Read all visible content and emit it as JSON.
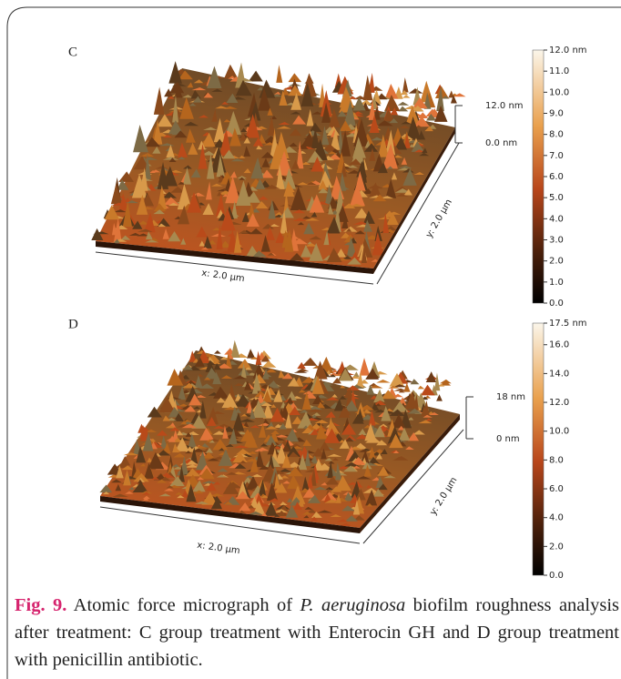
{
  "panels": [
    {
      "label": "C",
      "z_scale": {
        "top": "12.0 nm",
        "bottom": "0.0 nm"
      },
      "x_axis": "x: 2.0 µm",
      "y_axis": "y: 2.0 µm",
      "colorbar": {
        "range": [
          0,
          12
        ],
        "ticks": [
          {
            "value": 0,
            "label": "0.0"
          },
          {
            "value": 1,
            "label": "1.0"
          },
          {
            "value": 2,
            "label": "2.0"
          },
          {
            "value": 3,
            "label": "3.0"
          },
          {
            "value": 4,
            "label": "4.0"
          },
          {
            "value": 5,
            "label": "5.0"
          },
          {
            "value": 6,
            "label": "6.0"
          },
          {
            "value": 7,
            "label": "7.0"
          },
          {
            "value": 8,
            "label": "8.0"
          },
          {
            "value": 9,
            "label": "9.0"
          },
          {
            "value": 10,
            "label": "10.0"
          },
          {
            "value": 11,
            "label": "11.0"
          },
          {
            "value": 12,
            "label": "12.0 nm"
          }
        ]
      }
    },
    {
      "label": "D",
      "z_scale": {
        "top": "18 nm",
        "bottom": "0 nm"
      },
      "x_axis": "x: 2.0 µm",
      "y_axis": "y: 2.0 µm",
      "colorbar": {
        "range": [
          0,
          17.5
        ],
        "ticks": [
          {
            "value": 0,
            "label": "0.0"
          },
          {
            "value": 2,
            "label": "2.0"
          },
          {
            "value": 4,
            "label": "4.0"
          },
          {
            "value": 6,
            "label": "6.0"
          },
          {
            "value": 8,
            "label": "8.0"
          },
          {
            "value": 10,
            "label": "10.0"
          },
          {
            "value": 12,
            "label": "12.0"
          },
          {
            "value": 14,
            "label": "14.0"
          },
          {
            "value": 16,
            "label": "16.0"
          },
          {
            "value": 17.5,
            "label": "17.5 nm"
          }
        ]
      }
    }
  ],
  "caption": {
    "label": "Fig. 9.",
    "text_before": " Atomic force micrograph of ",
    "species": "P. aeruginosa",
    "text_after": " biofilm roughness analysis after treatment: C group treatment with Enterocin GH and D group treatment with penicillin antibiotic."
  }
}
